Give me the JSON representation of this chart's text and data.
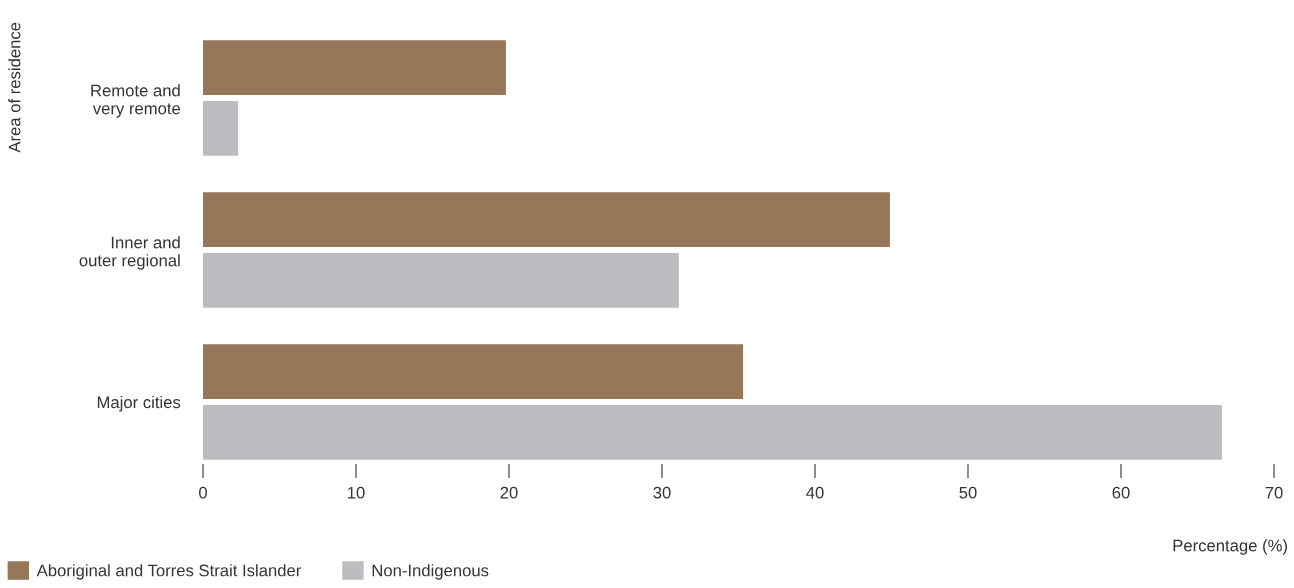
{
  "chart_data": {
    "type": "bar",
    "orientation": "horizontal",
    "xlabel": "Percentage (%)",
    "ylabel": "Area of residence",
    "categories": [
      "Remote and\nvery remote",
      "Inner and\nouter regional",
      "Major cities"
    ],
    "series": [
      {
        "name": "Aboriginal and Torres Strait Islander",
        "color": "#96775a",
        "values": [
          19.8,
          44.9,
          35.3
        ]
      },
      {
        "name": "Non-Indigenous",
        "color": "#bcbdc1",
        "values": [
          2.3,
          31.1,
          66.6
        ]
      }
    ],
    "xlim": [
      0,
      70
    ],
    "xticks": [
      0,
      10,
      20,
      30,
      40,
      50,
      60,
      70
    ],
    "grid": false,
    "legend": "bottom left"
  }
}
